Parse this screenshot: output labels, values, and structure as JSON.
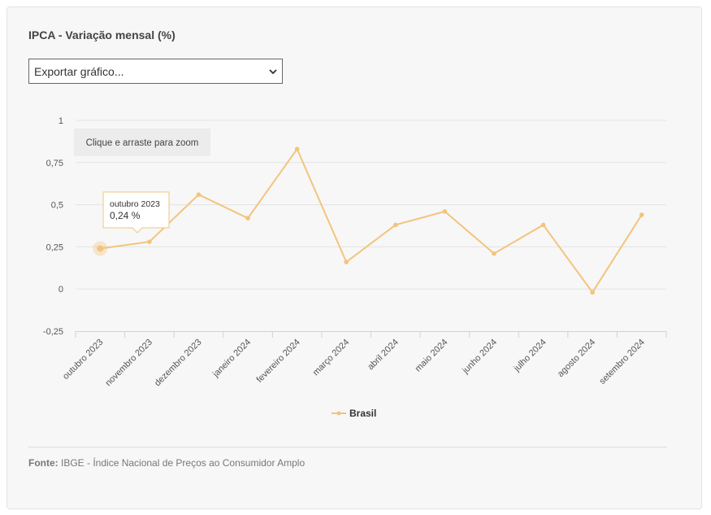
{
  "title": "IPCA - Variação mensal (%)",
  "export": {
    "label": "Exportar gráfico..."
  },
  "zoom_hint": "Clique e arraste para zoom",
  "tooltip": {
    "label": "outubro 2023",
    "value": "0,24 %"
  },
  "source": {
    "label": "Fonte:",
    "text": "IBGE - Índice Nacional de Preços ao Consumidor Amplo"
  },
  "colors": {
    "series": "#f3c47c",
    "grid": "#e4e4e4",
    "axis": "#c8d2e8"
  },
  "chart_data": {
    "type": "line",
    "categories": [
      "outubro 2023",
      "novembro 2023",
      "dezembro 2023",
      "janeiro 2024",
      "fevereiro 2024",
      "março 2024",
      "abril 2024",
      "maio 2024",
      "junho 2024",
      "julho 2024",
      "agosto 2024",
      "setembro 2024"
    ],
    "series": [
      {
        "name": "Brasil",
        "values": [
          0.24,
          0.28,
          0.56,
          0.42,
          0.83,
          0.16,
          0.38,
          0.46,
          0.21,
          0.38,
          -0.02,
          0.44
        ]
      }
    ],
    "yticks": [
      "1",
      "0,75",
      "0,5",
      "0,25",
      "0",
      "-0,25"
    ],
    "ylim": [
      -0.25,
      1
    ],
    "grid": true,
    "legend": "bottom-center",
    "highlighted_index": 0
  }
}
